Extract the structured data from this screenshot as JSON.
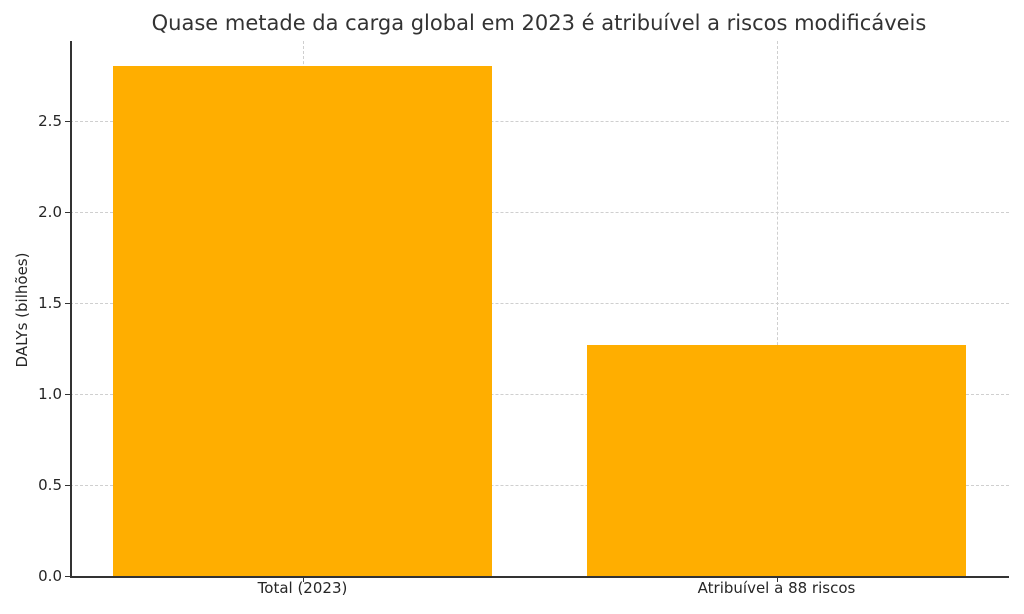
{
  "chart_data": {
    "type": "bar",
    "title": "Quase metade da carga global em 2023 é atribuível a riscos modificáveis",
    "xlabel": "",
    "ylabel": "DALYs (bilhões)",
    "categories": [
      "Total (2023)",
      "Atribuível a 88 riscos"
    ],
    "values": [
      2.8,
      1.27
    ],
    "ylim": [
      0,
      2.94
    ],
    "yticks": [
      "0.0",
      "0.5",
      "1.0",
      "1.5",
      "2.0",
      "2.5"
    ],
    "grid": true,
    "bar_color": "#ffae00",
    "legend": null
  }
}
